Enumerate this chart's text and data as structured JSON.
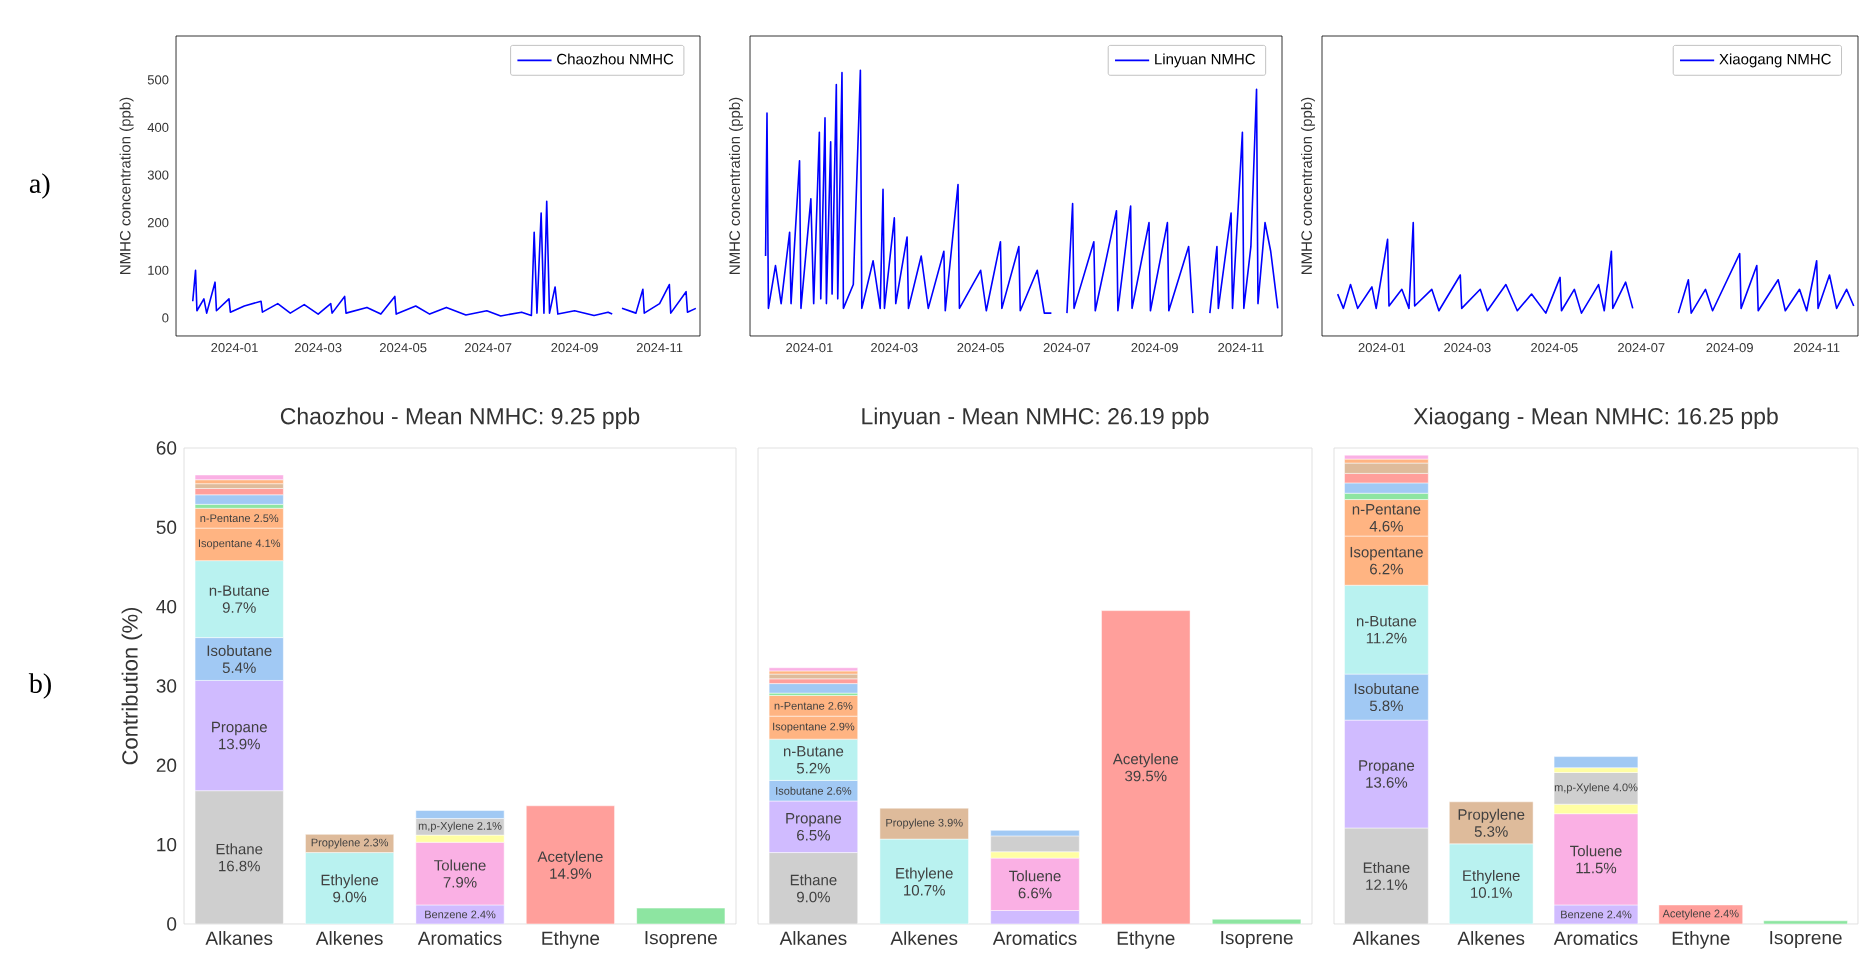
{
  "chart_data": [
    {
      "type": "line",
      "ylabel": "NMHC concentration (ppb)",
      "annotations": [
        "a)"
      ],
      "legend": "top right",
      "xlim": [
        "2023-11-20",
        "2024-11-30"
      ],
      "ylim": [
        -38,
        592
      ],
      "xticks": [
        "2024-01",
        "2024-03",
        "2024-05",
        "2024-07",
        "2024-09",
        "2024-11"
      ],
      "yticks": [
        0,
        100,
        200,
        300,
        400,
        500
      ],
      "series": [
        {
          "name": "Chaozhou NMHC",
          "color": "#0000ff",
          "x": [
            "2023-12-02",
            "2023-12-04",
            "2023-12-05",
            "2023-12-10",
            "2023-12-12",
            "2023-12-18",
            "2023-12-19",
            "2023-12-28",
            "2023-12-29",
            "2024-01-08",
            "2024-01-20",
            "2024-01-21",
            "2024-02-01",
            "2024-02-10",
            "2024-02-20",
            "2024-03-01",
            "2024-03-10",
            "2024-03-11",
            "2024-03-20",
            "2024-03-21",
            "2024-04-05",
            "2024-04-15",
            "2024-04-25",
            "2024-04-26",
            "2024-05-10",
            "2024-05-20",
            "2024-06-01",
            "2024-06-15",
            "2024-06-30",
            "2024-07-10",
            "2024-07-25",
            "2024-08-01",
            "2024-08-03",
            "2024-08-05",
            "2024-08-08",
            "2024-08-10",
            "2024-08-12",
            "2024-08-14",
            "2024-08-18",
            "2024-08-20",
            "2024-09-01",
            "2024-09-15",
            "2024-09-25",
            "2024-09-28",
            "2024-10-02",
            "2024-10-05",
            "2024-10-15",
            "2024-10-20",
            "2024-10-21",
            "2024-11-01",
            "2024-11-08",
            "2024-11-09",
            "2024-11-20",
            "2024-11-21",
            "2024-11-27"
          ],
          "values": [
            35,
            100,
            15,
            40,
            10,
            75,
            15,
            40,
            12,
            25,
            35,
            12,
            30,
            10,
            28,
            8,
            30,
            10,
            45,
            10,
            22,
            8,
            45,
            8,
            25,
            8,
            22,
            6,
            15,
            4,
            12,
            5,
            180,
            10,
            220,
            10,
            245,
            10,
            65,
            8,
            15,
            5,
            12,
            8,
            null,
            20,
            10,
            60,
            10,
            30,
            70,
            10,
            55,
            12,
            20
          ]
        }
      ]
    },
    {
      "type": "line",
      "ylabel": "NMHC concentration (ppb)",
      "legend": "top right",
      "tick_labels": "x",
      "xlim": [
        "2023-11-20",
        "2024-11-30"
      ],
      "ylim": [
        -38,
        592
      ],
      "xticks": [
        "2024-01",
        "2024-03",
        "2024-05",
        "2024-07",
        "2024-09",
        "2024-11"
      ],
      "series": [
        {
          "name": "Linyuan NMHC",
          "color": "#0000ff",
          "x": [
            "2023-12-01",
            "2023-12-02",
            "2023-12-03",
            "2023-12-08",
            "2023-12-12",
            "2023-12-18",
            "2023-12-19",
            "2023-12-25",
            "2023-12-26",
            "2024-01-02",
            "2024-01-04",
            "2024-01-08",
            "2024-01-09",
            "2024-01-12",
            "2024-01-13",
            "2024-01-16",
            "2024-01-17",
            "2024-01-20",
            "2024-01-21",
            "2024-01-24",
            "2024-01-25",
            "2024-02-01",
            "2024-02-06",
            "2024-02-07",
            "2024-02-15",
            "2024-02-20",
            "2024-02-22",
            "2024-02-23",
            "2024-03-01",
            "2024-03-02",
            "2024-03-10",
            "2024-03-11",
            "2024-03-20",
            "2024-03-25",
            "2024-04-05",
            "2024-04-06",
            "2024-04-15",
            "2024-04-16",
            "2024-05-01",
            "2024-05-05",
            "2024-05-15",
            "2024-05-16",
            "2024-05-28",
            "2024-05-29",
            "2024-06-10",
            "2024-06-15",
            "2024-06-20",
            "2024-06-22",
            "2024-07-01",
            "2024-07-05",
            "2024-07-06",
            "2024-07-20",
            "2024-07-21",
            "2024-08-05",
            "2024-08-06",
            "2024-08-15",
            "2024-08-16",
            "2024-08-28",
            "2024-08-29",
            "2024-09-10",
            "2024-09-11",
            "2024-09-25",
            "2024-09-28",
            "2024-10-02",
            "2024-10-10",
            "2024-10-15",
            "2024-10-16",
            "2024-10-25",
            "2024-10-26",
            "2024-11-02",
            "2024-11-03",
            "2024-11-08",
            "2024-11-12",
            "2024-11-13",
            "2024-11-18",
            "2024-11-22",
            "2024-11-27"
          ],
          "values": [
            130,
            430,
            20,
            110,
            30,
            180,
            30,
            330,
            20,
            250,
            30,
            390,
            40,
            420,
            30,
            370,
            50,
            490,
            40,
            515,
            20,
            70,
            520,
            20,
            120,
            20,
            270,
            20,
            210,
            30,
            170,
            20,
            130,
            20,
            140,
            15,
            280,
            20,
            100,
            15,
            160,
            20,
            150,
            15,
            100,
            10,
            10,
            null,
            10,
            240,
            20,
            160,
            15,
            225,
            15,
            235,
            20,
            200,
            15,
            200,
            15,
            150,
            10,
            null,
            10,
            150,
            20,
            220,
            20,
            390,
            20,
            150,
            480,
            30,
            200,
            140,
            20
          ]
        }
      ]
    },
    {
      "type": "line",
      "ylabel": "NMHC concentration (ppb)",
      "legend": "top right",
      "tick_labels": "x",
      "xlim": [
        "2023-11-20",
        "2024-11-30"
      ],
      "ylim": [
        -38,
        592
      ],
      "xticks": [
        "2024-01",
        "2024-03",
        "2024-05",
        "2024-07",
        "2024-09",
        "2024-11"
      ],
      "series": [
        {
          "name": "Xiaogang NMHC",
          "color": "#0000ff",
          "x": [
            "2023-12-01",
            "2023-12-05",
            "2023-12-10",
            "2023-12-15",
            "2023-12-25",
            "2023-12-28",
            "2024-01-05",
            "2024-01-06",
            "2024-01-15",
            "2024-01-20",
            "2024-01-23",
            "2024-01-24",
            "2024-02-05",
            "2024-02-10",
            "2024-02-25",
            "2024-02-26",
            "2024-03-10",
            "2024-03-15",
            "2024-03-28",
            "2024-04-05",
            "2024-04-15",
            "2024-04-25",
            "2024-05-05",
            "2024-05-06",
            "2024-05-15",
            "2024-05-20",
            "2024-06-01",
            "2024-06-05",
            "2024-06-10",
            "2024-06-11",
            "2024-06-20",
            "2024-06-25",
            "2024-06-27",
            "2024-07-27",
            "2024-08-03",
            "2024-08-05",
            "2024-08-15",
            "2024-08-20",
            "2024-09-08",
            "2024-09-09",
            "2024-09-20",
            "2024-09-21",
            "2024-10-05",
            "2024-10-10",
            "2024-10-20",
            "2024-10-25",
            "2024-11-01",
            "2024-11-02",
            "2024-11-10",
            "2024-11-15",
            "2024-11-22",
            "2024-11-27"
          ],
          "values": [
            50,
            20,
            70,
            20,
            65,
            20,
            165,
            25,
            60,
            20,
            200,
            25,
            60,
            15,
            90,
            20,
            60,
            15,
            70,
            15,
            50,
            10,
            85,
            15,
            60,
            10,
            70,
            15,
            140,
            20,
            75,
            20,
            null,
            10,
            80,
            10,
            60,
            15,
            135,
            20,
            110,
            15,
            80,
            15,
            60,
            15,
            120,
            20,
            90,
            20,
            60,
            25
          ]
        }
      ]
    },
    {
      "type": "bar",
      "stacked": true,
      "title": "Chaozhou - Mean NMHC: 9.25 ppb",
      "ylabel": "Contribution (%)",
      "annotations": [
        "b)"
      ],
      "categories": [
        "Alkanes",
        "Alkenes",
        "Aromatics",
        "Ethyne",
        "Isoprene"
      ],
      "ylim": [
        0,
        60
      ],
      "yticks": [
        0,
        10,
        20,
        30,
        40,
        50,
        60
      ],
      "series": [
        {
          "name": "Ethane",
          "color": "#cfcfcf",
          "values": [
            16.8,
            null,
            null,
            null,
            null
          ],
          "value_labels": [
            "16.8%",
            null,
            null,
            null,
            null
          ]
        },
        {
          "name": "Propane",
          "color": "#d0bbff",
          "values": [
            13.9,
            null,
            null,
            null,
            null
          ],
          "value_labels": [
            "13.9%",
            null,
            null,
            null,
            null
          ]
        },
        {
          "name": "Isobutane",
          "color": "#a1c9f4",
          "values": [
            5.4,
            null,
            null,
            null,
            null
          ],
          "value_labels": [
            "5.4%",
            null,
            null,
            null,
            null
          ]
        },
        {
          "name": "n-Butane",
          "color": "#b9f2f0",
          "values": [
            9.7,
            null,
            null,
            null,
            null
          ],
          "value_labels": [
            "9.7%",
            null,
            null,
            null,
            null
          ]
        },
        {
          "name": "Isopentane",
          "color": "#ffb482",
          "values": [
            4.1,
            null,
            null,
            null,
            null
          ],
          "value_labels": [
            "4.1%",
            null,
            null,
            null,
            null
          ]
        },
        {
          "name": "n-Pentane",
          "color": "#ffb482",
          "values": [
            2.5,
            null,
            null,
            null,
            null
          ],
          "value_labels": [
            "2.5%",
            null,
            null,
            null,
            null
          ]
        },
        {
          "color": "#8de5a1",
          "values": [
            0.5,
            null,
            null,
            null,
            null
          ]
        },
        {
          "color": "#a1c9f4",
          "values": [
            1.2,
            null,
            null,
            null,
            null
          ]
        },
        {
          "color": "#ff9f9b",
          "values": [
            0.8,
            null,
            null,
            null,
            null
          ]
        },
        {
          "color": "#debb9b",
          "values": [
            0.6,
            null,
            null,
            null,
            null
          ]
        },
        {
          "color": "#ffb482",
          "values": [
            0.5,
            null,
            null,
            null,
            null
          ]
        },
        {
          "color": "#fab0e4",
          "values": [
            0.6,
            null,
            null,
            null,
            null
          ]
        },
        {
          "name": "Ethylene",
          "color": "#b9f2f0",
          "values": [
            null,
            9.0,
            null,
            null,
            null
          ],
          "value_labels": [
            null,
            "9.0%",
            null,
            null,
            null
          ]
        },
        {
          "name": "Propylene",
          "color": "#debb9b",
          "values": [
            null,
            2.3,
            null,
            null,
            null
          ],
          "value_labels": [
            null,
            "2.3%",
            null,
            null,
            null
          ]
        },
        {
          "name": "Benzene",
          "color": "#d0bbff",
          "values": [
            null,
            null,
            2.4,
            null,
            null
          ],
          "value_labels": [
            null,
            null,
            "2.4%",
            null,
            null
          ]
        },
        {
          "name": "Toluene",
          "color": "#fab0e4",
          "values": [
            null,
            null,
            7.9,
            null,
            null
          ],
          "value_labels": [
            null,
            null,
            "7.9%",
            null,
            null
          ]
        },
        {
          "color": "#fffea3",
          "values": [
            null,
            null,
            0.9,
            null,
            null
          ]
        },
        {
          "name": "m,p-Xylene",
          "color": "#cfcfcf",
          "values": [
            null,
            null,
            2.1,
            null,
            null
          ],
          "value_labels": [
            null,
            null,
            "2.1%",
            null,
            null
          ]
        },
        {
          "color": "#a1c9f4",
          "values": [
            null,
            null,
            1.0,
            null,
            null
          ]
        },
        {
          "name": "Acetylene",
          "color": "#ff9f9b",
          "values": [
            null,
            null,
            null,
            14.9,
            null
          ],
          "value_labels": [
            null,
            null,
            null,
            "14.9%",
            null
          ]
        },
        {
          "color": "#8de5a1",
          "values": [
            null,
            null,
            null,
            null,
            2.0
          ]
        }
      ]
    },
    {
      "type": "bar",
      "stacked": true,
      "title": "Linyuan - Mean NMHC: 26.19 ppb",
      "tick_labels": "x",
      "categories": [
        "Alkanes",
        "Alkenes",
        "Aromatics",
        "Ethyne",
        "Isoprene"
      ],
      "ylim": [
        0,
        60
      ],
      "series": [
        {
          "name": "Ethane",
          "color": "#cfcfcf",
          "values": [
            9.0,
            null,
            null,
            null,
            null
          ],
          "value_labels": [
            "9.0%",
            null,
            null,
            null,
            null
          ]
        },
        {
          "name": "Propane",
          "color": "#d0bbff",
          "values": [
            6.5,
            null,
            null,
            null,
            null
          ],
          "value_labels": [
            "6.5%",
            null,
            null,
            null,
            null
          ]
        },
        {
          "name": "Isobutane",
          "color": "#a1c9f4",
          "values": [
            2.6,
            null,
            null,
            null,
            null
          ],
          "value_labels": [
            "2.6%",
            null,
            null,
            null,
            null
          ]
        },
        {
          "name": "n-Butane",
          "color": "#b9f2f0",
          "values": [
            5.2,
            null,
            null,
            null,
            null
          ],
          "value_labels": [
            "5.2%",
            null,
            null,
            null,
            null
          ]
        },
        {
          "name": "Isopentane",
          "color": "#ffb482",
          "values": [
            2.9,
            null,
            null,
            null,
            null
          ],
          "value_labels": [
            "2.9%",
            null,
            null,
            null,
            null
          ]
        },
        {
          "name": "n-Pentane",
          "color": "#ffb482",
          "values": [
            2.6,
            null,
            null,
            null,
            null
          ],
          "value_labels": [
            "2.6%",
            null,
            null,
            null,
            null
          ]
        },
        {
          "color": "#8de5a1",
          "values": [
            0.3,
            null,
            null,
            null,
            null
          ]
        },
        {
          "color": "#a1c9f4",
          "values": [
            1.2,
            null,
            null,
            null,
            null
          ]
        },
        {
          "color": "#ff9f9b",
          "values": [
            0.6,
            null,
            null,
            null,
            null
          ]
        },
        {
          "color": "#debb9b",
          "values": [
            0.6,
            null,
            null,
            null,
            null
          ]
        },
        {
          "color": "#ffb482",
          "values": [
            0.4,
            null,
            null,
            null,
            null
          ]
        },
        {
          "color": "#fab0e4",
          "values": [
            0.4,
            null,
            null,
            null,
            null
          ]
        },
        {
          "name": "Ethylene",
          "color": "#b9f2f0",
          "values": [
            null,
            10.7,
            null,
            null,
            null
          ],
          "value_labels": [
            null,
            "10.7%",
            null,
            null,
            null
          ]
        },
        {
          "name": "Propylene",
          "color": "#debb9b",
          "values": [
            null,
            3.9,
            null,
            null,
            null
          ],
          "value_labels": [
            null,
            "3.9%",
            null,
            null,
            null
          ]
        },
        {
          "color": "#d0bbff",
          "values": [
            null,
            null,
            1.7,
            null,
            null
          ]
        },
        {
          "name": "Toluene",
          "color": "#fab0e4",
          "values": [
            null,
            null,
            6.6,
            null,
            null
          ],
          "value_labels": [
            null,
            null,
            "6.6%",
            null,
            null
          ]
        },
        {
          "color": "#fffea3",
          "values": [
            null,
            null,
            0.8,
            null,
            null
          ]
        },
        {
          "color": "#cfcfcf",
          "values": [
            null,
            null,
            2.0,
            null,
            null
          ]
        },
        {
          "color": "#a1c9f4",
          "values": [
            null,
            null,
            0.7,
            null,
            null
          ]
        },
        {
          "name": "Acetylene",
          "color": "#ff9f9b",
          "values": [
            null,
            null,
            null,
            39.5,
            null
          ],
          "value_labels": [
            null,
            null,
            null,
            "39.5%",
            null
          ]
        },
        {
          "color": "#8de5a1",
          "values": [
            null,
            null,
            null,
            null,
            0.6
          ]
        }
      ]
    },
    {
      "type": "bar",
      "stacked": true,
      "title": "Xiaogang - Mean NMHC: 16.25 ppb",
      "tick_labels": "x",
      "categories": [
        "Alkanes",
        "Alkenes",
        "Aromatics",
        "Ethyne",
        "Isoprene"
      ],
      "ylim": [
        0,
        60
      ],
      "series": [
        {
          "name": "Ethane",
          "color": "#cfcfcf",
          "values": [
            12.1,
            null,
            null,
            null,
            null
          ],
          "value_labels": [
            "12.1%",
            null,
            null,
            null,
            null
          ]
        },
        {
          "name": "Propane",
          "color": "#d0bbff",
          "values": [
            13.6,
            null,
            null,
            null,
            null
          ],
          "value_labels": [
            "13.6%",
            null,
            null,
            null,
            null
          ]
        },
        {
          "name": "Isobutane",
          "color": "#a1c9f4",
          "values": [
            5.8,
            null,
            null,
            null,
            null
          ],
          "value_labels": [
            "5.8%",
            null,
            null,
            null,
            null
          ]
        },
        {
          "name": "n-Butane",
          "color": "#b9f2f0",
          "values": [
            11.2,
            null,
            null,
            null,
            null
          ],
          "value_labels": [
            "11.2%",
            null,
            null,
            null,
            null
          ]
        },
        {
          "name": "Isopentane",
          "color": "#ffb482",
          "values": [
            6.2,
            null,
            null,
            null,
            null
          ],
          "value_labels": [
            "6.2%",
            null,
            null,
            null,
            null
          ]
        },
        {
          "name": "n-Pentane",
          "color": "#ffb482",
          "values": [
            4.6,
            null,
            null,
            null,
            null
          ],
          "value_labels": [
            "4.6%",
            null,
            null,
            null,
            null
          ]
        },
        {
          "color": "#8de5a1",
          "values": [
            0.8,
            null,
            null,
            null,
            null
          ]
        },
        {
          "color": "#a1c9f4",
          "values": [
            1.3,
            null,
            null,
            null,
            null
          ]
        },
        {
          "color": "#ff9f9b",
          "values": [
            1.2,
            null,
            null,
            null,
            null
          ]
        },
        {
          "color": "#debb9b",
          "values": [
            1.3,
            null,
            null,
            null,
            null
          ]
        },
        {
          "color": "#ffb482",
          "values": [
            0.5,
            null,
            null,
            null,
            null
          ]
        },
        {
          "color": "#fab0e4",
          "values": [
            0.5,
            null,
            null,
            null,
            null
          ]
        },
        {
          "name": "Ethylene",
          "color": "#b9f2f0",
          "values": [
            null,
            10.1,
            null,
            null,
            null
          ],
          "value_labels": [
            null,
            "10.1%",
            null,
            null,
            null
          ]
        },
        {
          "name": "Propylene",
          "color": "#debb9b",
          "values": [
            null,
            5.3,
            null,
            null,
            null
          ],
          "value_labels": [
            null,
            "5.3%",
            null,
            null,
            null
          ]
        },
        {
          "name": "Benzene",
          "color": "#d0bbff",
          "values": [
            null,
            null,
            2.4,
            null,
            null
          ],
          "value_labels": [
            null,
            null,
            "2.4%",
            null,
            null
          ]
        },
        {
          "name": "Toluene",
          "color": "#fab0e4",
          "values": [
            null,
            null,
            11.5,
            null,
            null
          ],
          "value_labels": [
            null,
            null,
            "11.5%",
            null,
            null
          ]
        },
        {
          "color": "#fffea3",
          "values": [
            null,
            null,
            1.2,
            null,
            null
          ]
        },
        {
          "name": "m,p-Xylene",
          "color": "#cfcfcf",
          "values": [
            null,
            null,
            4.0,
            null,
            null
          ],
          "value_labels": [
            null,
            null,
            "4.0%",
            null,
            null
          ]
        },
        {
          "color": "#fffea3",
          "values": [
            null,
            null,
            0.6,
            null,
            null
          ]
        },
        {
          "color": "#a1c9f4",
          "values": [
            null,
            null,
            1.4,
            null,
            null
          ]
        },
        {
          "name": "Acetylene",
          "color": "#ff9f9b",
          "values": [
            null,
            null,
            null,
            2.4,
            null
          ],
          "value_labels": [
            null,
            null,
            null,
            "2.4%",
            null
          ]
        },
        {
          "color": "#8de5a1",
          "values": [
            null,
            null,
            null,
            null,
            0.4
          ]
        }
      ]
    }
  ]
}
